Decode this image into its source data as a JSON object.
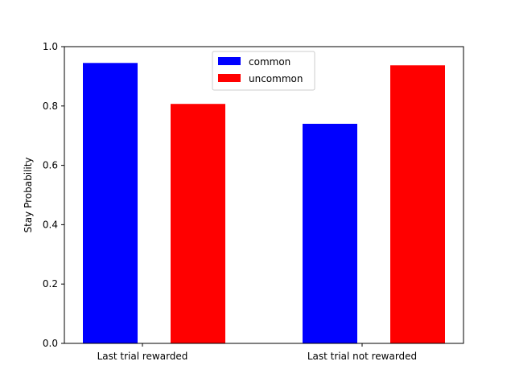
{
  "chart_data": {
    "type": "bar",
    "title": "",
    "xlabel": "",
    "ylabel": "Stay Probability",
    "ylim": [
      0,
      1.0
    ],
    "yticks": [
      "0.0",
      "0.2",
      "0.4",
      "0.6",
      "0.8",
      "1.0"
    ],
    "categories": [
      "Last trial rewarded",
      "Last trial not rewarded"
    ],
    "series": [
      {
        "name": "common",
        "color": "#0000ff",
        "values": [
          0.945,
          0.74
        ]
      },
      {
        "name": "uncommon",
        "color": "#ff0000",
        "values": [
          0.807,
          0.937
        ]
      }
    ],
    "legend": {
      "position": "upper-center"
    },
    "grid": false
  }
}
